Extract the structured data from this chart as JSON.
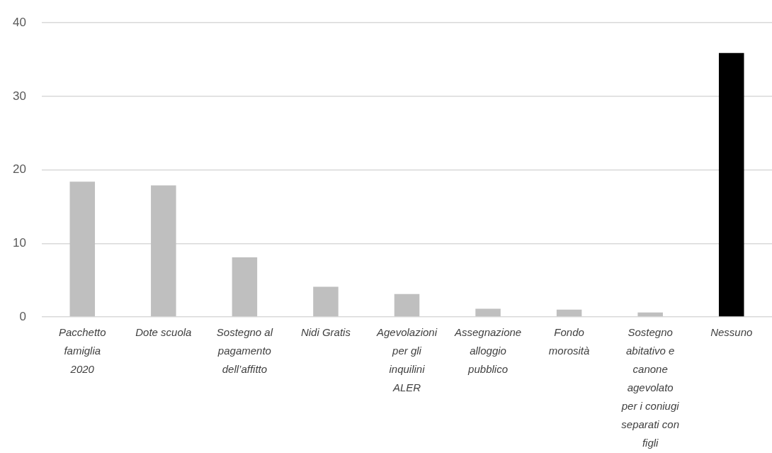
{
  "chart_data": {
    "type": "bar",
    "categories": [
      "Pacchetto famiglia 2020",
      "Dote scuola",
      "Sostegno al pagamento dell’affitto",
      "Nidi Gratis",
      "Agevolazioni per gli inquilini ALER",
      "Assegnazione alloggio pubblico",
      "Fondo morosità",
      "Sostegno abitativo e canone agevolato per i coniugi separati con figli",
      "Nessuno"
    ],
    "values": [
      18.4,
      17.9,
      8.1,
      4.1,
      3.1,
      1.1,
      1.0,
      0.6,
      35.9
    ],
    "colors": [
      "#bfbfbf",
      "#bfbfbf",
      "#bfbfbf",
      "#bfbfbf",
      "#bfbfbf",
      "#bfbfbf",
      "#bfbfbf",
      "#bfbfbf",
      "#000000"
    ],
    "ylim": [
      0,
      40
    ],
    "yticks": [
      0,
      10,
      20,
      30,
      40
    ],
    "grid": "y"
  }
}
